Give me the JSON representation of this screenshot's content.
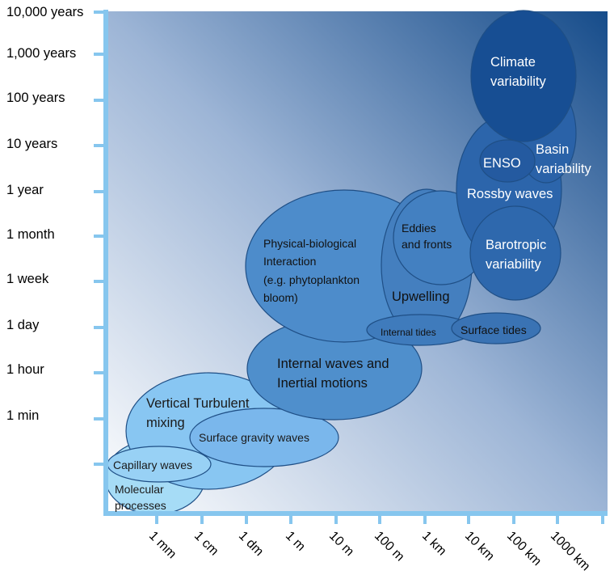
{
  "y_axis": {
    "ticks": [
      "10,000 years",
      "1,000 years",
      "100 years",
      "10 years",
      "1 year",
      "1 month",
      "1 week",
      "1 day",
      "1 hour",
      "1 min"
    ]
  },
  "x_axis": {
    "ticks": [
      "1 mm",
      "1 cm",
      "1 dm",
      "1 m",
      "10 m",
      "100 m",
      "1 km",
      "10 km",
      "100 km",
      "1000 km"
    ]
  },
  "colors": {
    "axis": "#86c6ee",
    "gradient_light": "#ffffff",
    "gradient_dark": "#164c8a"
  },
  "processes": [
    {
      "id": "molecular",
      "label": "Molecular\nprocesses",
      "fill": "#a6dcf6"
    },
    {
      "id": "vertical",
      "label": "Vertical Turbulent\nmixing",
      "fill": "#88c6f2"
    },
    {
      "id": "capillary",
      "label": "Capillary waves",
      "fill": "#98d1f5"
    },
    {
      "id": "gravity",
      "label": "Surface gravity waves",
      "fill": "#7ab7ec"
    },
    {
      "id": "internal_waves",
      "label": "Internal waves and\nInertial motions",
      "fill": "#4f8fcc"
    },
    {
      "id": "physbio",
      "label": "Physical-biological\nInteraction\n(e.g. phytoplankton\nbloom)",
      "fill": "#4d8ccb"
    },
    {
      "id": "upwelling",
      "label": "Upwelling",
      "fill": "#447fbf"
    },
    {
      "id": "eddies",
      "label": "Eddies\nand fronts",
      "fill": "#4380c1"
    },
    {
      "id": "internal_tides",
      "label": "Internal tides",
      "fill": "#3f7bbc"
    },
    {
      "id": "surface_tides",
      "label": "Surface tides",
      "fill": "#3a73b4"
    },
    {
      "id": "rossby",
      "label": "Rossby waves",
      "fill": "#2c65ab"
    },
    {
      "id": "basin",
      "label": "Basin\nvariability",
      "fill": "#2a62a8"
    },
    {
      "id": "enso",
      "label": "ENSO",
      "fill": "#245aa0"
    },
    {
      "id": "barotropic",
      "label": "Barotropic\nvariability",
      "fill": "#2e68ad"
    },
    {
      "id": "climate",
      "label": "Climate\nvariability",
      "fill": "#174e93"
    }
  ]
}
